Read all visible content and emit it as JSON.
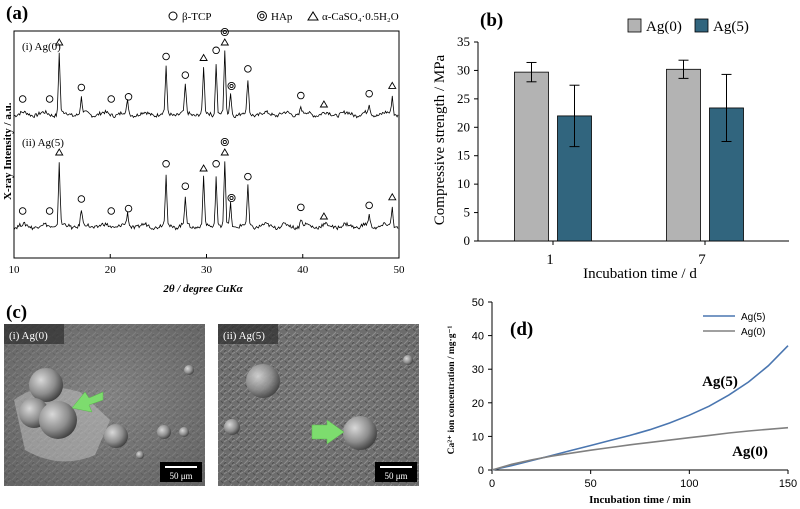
{
  "panel_labels": {
    "a": "(a)",
    "b": "(b)",
    "c": "(c)",
    "d": "(d)"
  },
  "xrd": {
    "legend": [
      {
        "symbol": "circle",
        "label": "β-TCP"
      },
      {
        "symbol": "double-circle",
        "label": "HAp"
      },
      {
        "symbol": "triangle",
        "label": "α-CaSO₄·0.5H₂O"
      }
    ],
    "trace_labels": [
      "(i) Ag(0)",
      "(ii) Ag(5)"
    ],
    "ylabel": "X-ray Intensity / a.u.",
    "xlabel": "2θ / degree CuKα",
    "xticks": [
      "10",
      "20",
      "30",
      "40",
      "50"
    ]
  },
  "sem": {
    "labels": [
      "(i) Ag(0)",
      "(ii) Ag(5)"
    ],
    "scale_bar": "50 μm"
  },
  "chart_data": [
    {
      "type": "line",
      "title": "",
      "xlabel": "2θ / degree CuKα",
      "ylabel": "X-ray Intensity / a.u.",
      "xlim": [
        10,
        50
      ],
      "series": [
        {
          "name": "(i) Ag(0)",
          "peaks": [
            [
              14.7,
              1.0
            ],
            [
              17.0,
              0.25
            ],
            [
              21.8,
              0.2
            ],
            [
              25.8,
              0.75
            ],
            [
              27.8,
              0.45
            ],
            [
              29.7,
              0.75
            ],
            [
              31.0,
              0.85
            ],
            [
              31.9,
              1.0
            ],
            [
              32.5,
              0.35
            ],
            [
              34.3,
              0.55
            ],
            [
              39.8,
              0.12
            ],
            [
              46.9,
              0.15
            ],
            [
              49.3,
              0.3
            ]
          ]
        },
        {
          "name": "(ii) Ag(5)",
          "peaks": [
            [
              14.7,
              1.0
            ],
            [
              17.0,
              0.25
            ],
            [
              21.8,
              0.2
            ],
            [
              25.8,
              0.8
            ],
            [
              27.8,
              0.45
            ],
            [
              29.7,
              0.75
            ],
            [
              31.0,
              0.8
            ],
            [
              31.9,
              1.0
            ],
            [
              32.5,
              0.35
            ],
            [
              34.3,
              0.6
            ],
            [
              39.8,
              0.12
            ],
            [
              46.9,
              0.15
            ],
            [
              49.3,
              0.3
            ]
          ]
        }
      ],
      "markers": {
        "triangle": [
          14.7,
          29.7,
          31.9,
          42.2,
          49.3
        ],
        "circle": [
          10.9,
          13.7,
          17.0,
          20.1,
          21.9,
          25.8,
          27.8,
          31.0,
          34.3,
          39.8,
          46.9
        ],
        "double-circle": [
          31.9,
          32.6
        ]
      }
    },
    {
      "type": "bar",
      "title": "",
      "xlabel": "Incubation time / d",
      "ylabel": "Compressive strength / MPa",
      "categories": [
        "1",
        "7"
      ],
      "ylim": [
        0,
        35
      ],
      "yticks": [
        "0",
        "5",
        "10",
        "15",
        "20",
        "25",
        "30",
        "35"
      ],
      "legend_placement": "top-right",
      "series": [
        {
          "name": "Ag(0)",
          "color": "#b3b3b3",
          "values": [
            29.7,
            30.2
          ],
          "errors": [
            1.7,
            1.6
          ]
        },
        {
          "name": "Ag(5)",
          "color": "#31657e",
          "values": [
            22.0,
            23.4
          ],
          "errors": [
            5.4,
            5.9
          ]
        }
      ]
    },
    {
      "type": "line",
      "title": "",
      "xlabel": "Incubation time / min",
      "ylabel": "Ca²⁺ ion concentration / mg·g⁻¹",
      "xlim": [
        0,
        150
      ],
      "ylim": [
        0,
        50
      ],
      "xticks": [
        "0",
        "50",
        "100",
        "150"
      ],
      "yticks": [
        "0",
        "10",
        "20",
        "30",
        "40",
        "50"
      ],
      "legend_placement": "top-right",
      "series": [
        {
          "name": "Ag(5)",
          "label": "Ag(5)",
          "color": "#4a76b0",
          "x": [
            0,
            10,
            20,
            30,
            40,
            50,
            60,
            70,
            80,
            90,
            100,
            110,
            120,
            130,
            140,
            150
          ],
          "y": [
            0,
            1.3,
            2.8,
            4.3,
            5.8,
            7.3,
            8.8,
            10.3,
            12.0,
            14.0,
            16.3,
            19.0,
            22.3,
            26.2,
            31.0,
            37.0
          ]
        },
        {
          "name": "Ag(0)",
          "label": "Ag(0)",
          "color": "#808080",
          "x": [
            0,
            10,
            20,
            30,
            40,
            50,
            60,
            70,
            80,
            90,
            100,
            110,
            120,
            130,
            140,
            150
          ],
          "y": [
            0,
            1.7,
            3.0,
            4.1,
            5.0,
            5.9,
            6.7,
            7.5,
            8.2,
            8.9,
            9.6,
            10.3,
            11.0,
            11.6,
            12.1,
            12.6
          ]
        }
      ]
    }
  ]
}
